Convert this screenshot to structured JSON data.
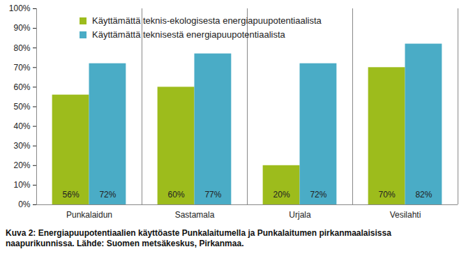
{
  "chart_data": {
    "type": "bar",
    "caption": "Kuva 2: Energiapuupotentiaalien käyttöaste Punkalaitumella ja Punkalaitumen pirkanmaalaisissa naapurikunnissa. Lähde: Suomen metsäkeskus, Pirkanmaa.",
    "categories": [
      "Punkalaidun",
      "Sastamala",
      "Urjala",
      "Vesilahti"
    ],
    "series": [
      {
        "name": "Käyttämättä teknis-ekologisesta energiapuupotentiaalista",
        "color": "#9dbc1c",
        "values": [
          56,
          60,
          20,
          70
        ],
        "value_labels": [
          "56%",
          "60%",
          "20%",
          "70%"
        ]
      },
      {
        "name": "Käyttämättä teknisestä energiapuupotentiaalista",
        "color": "#4aacc6",
        "values": [
          72,
          77,
          72,
          82
        ],
        "value_labels": [
          "72%",
          "77%",
          "72%",
          "82%"
        ]
      }
    ],
    "ylim": [
      0,
      100
    ],
    "yticks": [
      {
        "value": 0,
        "label": "0%"
      },
      {
        "value": 10,
        "label": "10%"
      },
      {
        "value": 20,
        "label": "20%"
      },
      {
        "value": 30,
        "label": "30%"
      },
      {
        "value": 40,
        "label": "40%"
      },
      {
        "value": 50,
        "label": "50%"
      },
      {
        "value": 60,
        "label": "60%"
      },
      {
        "value": 70,
        "label": "70%"
      },
      {
        "value": 80,
        "label": "80%"
      },
      {
        "value": 90,
        "label": "90%"
      },
      {
        "value": 100,
        "label": "100%"
      }
    ],
    "grid": false,
    "legend": "top-left",
    "data_labels": true
  }
}
